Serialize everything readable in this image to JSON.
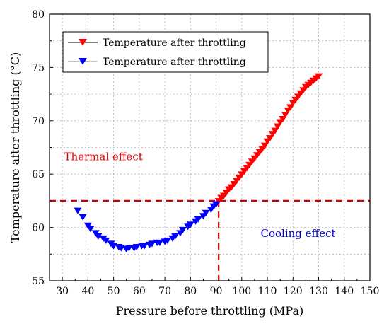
{
  "chart_data": {
    "type": "scatter",
    "xlabel": "Pressure before throttling (MPa)",
    "ylabel": "Temperature after throttling (°C)",
    "xlim": [
      25,
      150
    ],
    "ylim": [
      55,
      80
    ],
    "xticks": [
      30,
      40,
      50,
      60,
      70,
      80,
      90,
      100,
      110,
      120,
      130,
      140,
      150
    ],
    "yticks": [
      55,
      60,
      65,
      70,
      75,
      80
    ],
    "grid": true,
    "legend_position": "top-left",
    "series": [
      {
        "name": "Temperature after throttling",
        "color": "#ff0000",
        "marker": "triangle-down",
        "x": [
          90,
          91,
          92,
          93,
          94,
          95,
          96,
          97,
          98,
          99,
          100,
          101,
          102,
          103,
          104,
          105,
          106,
          107,
          108,
          109,
          110,
          111,
          112,
          113,
          114,
          115,
          116,
          117,
          118,
          119,
          120,
          121,
          122,
          123,
          124,
          125,
          126,
          127,
          128,
          129,
          130
        ],
        "y": [
          62.2,
          62.5,
          62.8,
          63.0,
          63.3,
          63.6,
          63.8,
          64.1,
          64.4,
          64.7,
          65.0,
          65.3,
          65.6,
          65.9,
          66.2,
          66.5,
          66.8,
          67.1,
          67.4,
          67.7,
          68.1,
          68.4,
          68.8,
          69.1,
          69.5,
          69.9,
          70.2,
          70.6,
          71.0,
          71.3,
          71.7,
          72.0,
          72.3,
          72.6,
          72.9,
          73.2,
          73.4,
          73.6,
          73.8,
          74.0,
          74.2
        ]
      },
      {
        "name": "Temperature after throttling",
        "color": "#0000ff",
        "marker": "triangle-down",
        "x": [
          36,
          38,
          40,
          41,
          43,
          44,
          46,
          47,
          49,
          50,
          52,
          53,
          55,
          56,
          58,
          59,
          61,
          62,
          64,
          65,
          67,
          68,
          70,
          71,
          73,
          74,
          76,
          77,
          79,
          80,
          82,
          83,
          85,
          86,
          88,
          89,
          90
        ],
        "y": [
          61.6,
          61.0,
          60.2,
          59.9,
          59.5,
          59.2,
          59.0,
          58.8,
          58.5,
          58.3,
          58.2,
          58.1,
          58.0,
          58.1,
          58.1,
          58.2,
          58.3,
          58.3,
          58.4,
          58.5,
          58.6,
          58.6,
          58.7,
          58.8,
          59.0,
          59.2,
          59.5,
          59.8,
          60.1,
          60.3,
          60.6,
          60.8,
          61.1,
          61.4,
          61.7,
          62.0,
          62.2
        ]
      }
    ],
    "reference_lines": [
      {
        "orientation": "horizontal",
        "value": 62.5,
        "color": "#cc0000",
        "style": "dashed"
      },
      {
        "orientation": "vertical",
        "value": 91,
        "from": 55,
        "to": 62.5,
        "color": "#cc0000",
        "style": "dashed"
      }
    ],
    "annotations": [
      {
        "text": "Thermal effect",
        "x": 46,
        "y": 66.3,
        "color": "#dd0000"
      },
      {
        "text": "Cooling effect",
        "x": 122,
        "y": 59.1,
        "color": "#0000cc"
      }
    ]
  }
}
